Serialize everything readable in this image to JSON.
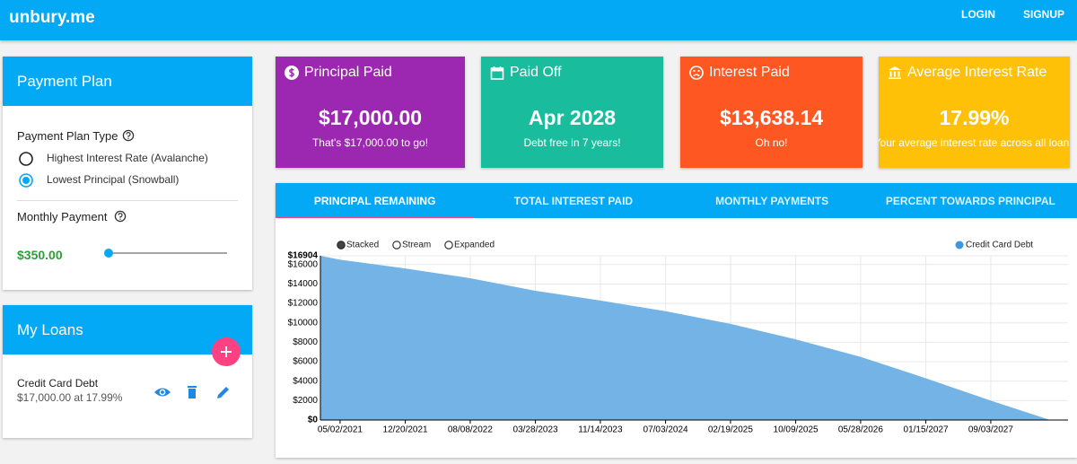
{
  "header": {
    "brand": "unbury.me",
    "links": [
      "LOGIN",
      "SIGNUP"
    ]
  },
  "payment_plan": {
    "title": "Payment Plan",
    "type_label": "Payment Plan Type",
    "options": [
      "Highest Interest Rate (Avalanche)",
      "Lowest Principal (Snowball)"
    ],
    "selected": 1,
    "monthly_label": "Monthly Payment",
    "monthly_value": "$350.00"
  },
  "loans": {
    "title": "My Loans",
    "items": [
      {
        "name": "Credit Card Debt",
        "detail": "$17,000.00 at 17.99%"
      }
    ]
  },
  "stats": [
    {
      "title": "Principal Paid",
      "value": "$17,000.00",
      "note": "That's $17,000.00 to go!",
      "color": "#9c27b0"
    },
    {
      "title": "Paid Off",
      "value": "Apr 2028",
      "note": "Debt free in 7 years!",
      "color": "#19bc9c"
    },
    {
      "title": "Interest Paid",
      "value": "$13,638.14",
      "note": "Oh no!",
      "color": "#ff5722"
    },
    {
      "title": "Average Interest Rate",
      "value": "17.99%",
      "note": "Your average interest rate across all loans",
      "color": "#ffc107"
    }
  ],
  "tabs": [
    "PRINCIPAL REMAINING",
    "TOTAL INTEREST PAID",
    "MONTHLY PAYMENTS",
    "PERCENT TOWARDS PRINCIPAL"
  ],
  "active_tab": 0,
  "chart_controls": [
    "Stacked",
    "Stream",
    "Expanded"
  ],
  "selected_control": 0,
  "chart_data": {
    "type": "area",
    "x": [
      "02/21/2021",
      "05/02/2021",
      "12/20/2021",
      "08/08/2022",
      "03/28/2023",
      "11/14/2023",
      "07/03/2024",
      "02/19/2025",
      "10/09/2025",
      "05/28/2026",
      "01/15/2027",
      "09/03/2027",
      "04/01/2028"
    ],
    "series": [
      {
        "name": "Credit Card Debt",
        "color": "#74b3e6",
        "values": [
          16904,
          16500,
          15600,
          14600,
          13300,
          12300,
          11200,
          9900,
          8300,
          6500,
          4300,
          2000,
          0
        ]
      }
    ],
    "xlim": [
      "02/21/2021",
      "04/01/2028"
    ],
    "xticks": [
      "05/02/2021",
      "12/20/2021",
      "08/08/2022",
      "03/28/2023",
      "11/14/2023",
      "07/03/2024",
      "02/19/2025",
      "10/09/2025",
      "05/28/2026",
      "01/15/2027",
      "09/03/2027"
    ],
    "ylim": [
      0,
      16904
    ],
    "yticks": [
      {
        "value": 0,
        "label": "$0"
      },
      {
        "value": 2000,
        "label": "$2000"
      },
      {
        "value": 4000,
        "label": "$4000"
      },
      {
        "value": 6000,
        "label": "$6000"
      },
      {
        "value": 8000,
        "label": "$8000"
      },
      {
        "value": 10000,
        "label": "$10000"
      },
      {
        "value": 12000,
        "label": "$12000"
      },
      {
        "value": 14000,
        "label": "$14000"
      },
      {
        "value": 16000,
        "label": "$16000"
      },
      {
        "value": 16904,
        "label": "$16904"
      }
    ],
    "grid": true,
    "legend": "top-right"
  }
}
